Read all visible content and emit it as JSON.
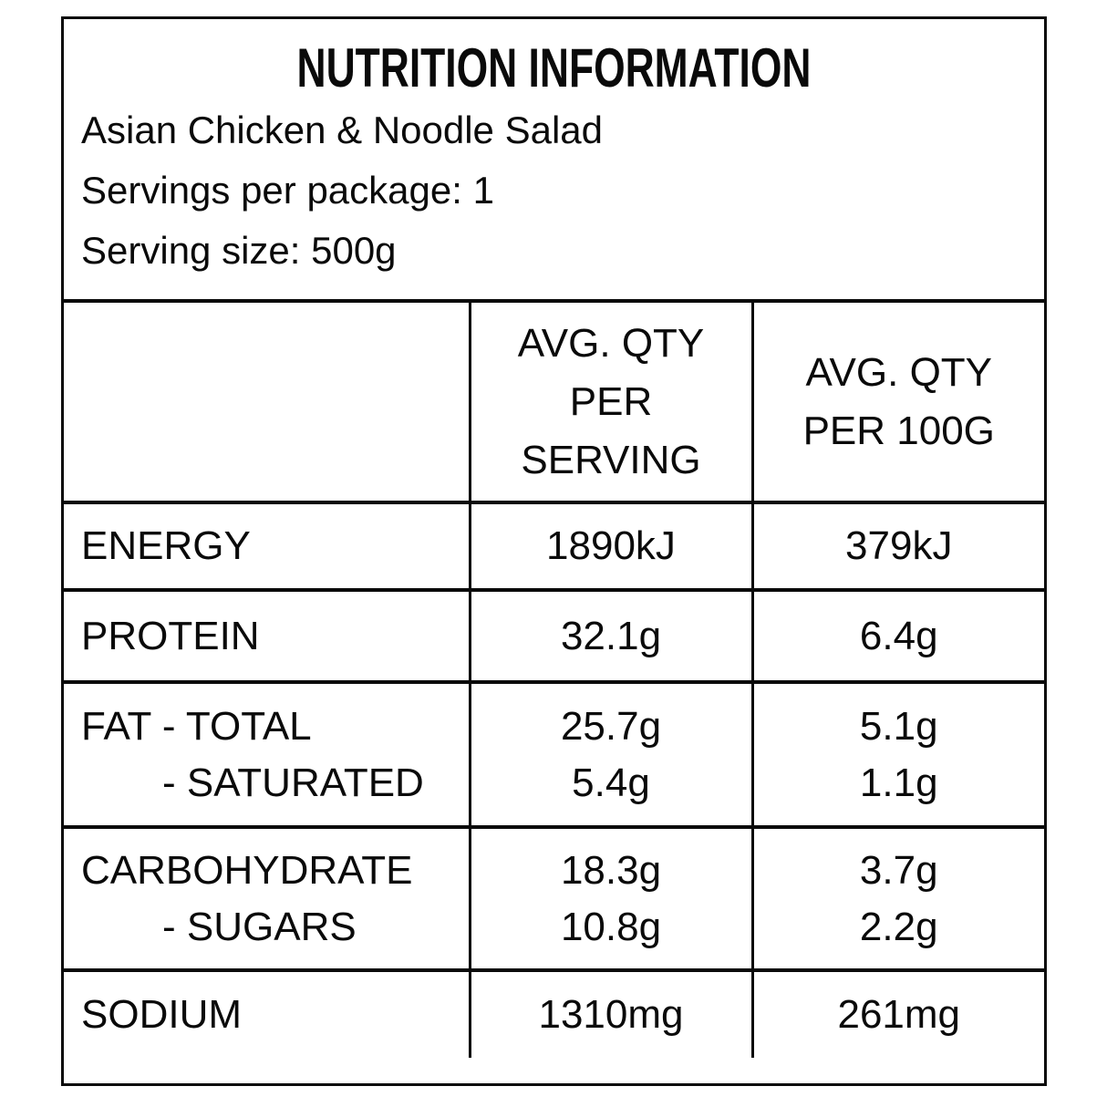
{
  "header": {
    "title": "NUTRITION INFORMATION",
    "product_name": "Asian Chicken & Noodle Salad",
    "servings_line": "Servings per package: 1",
    "serving_size_line": "Serving size: 500g"
  },
  "table": {
    "columns": {
      "nutrient": "",
      "per_serving": "AVG. QTY\nPER\nSERVING",
      "per_100g": "AVG. QTY\nPER 100G"
    },
    "rows": [
      {
        "label": "ENERGY",
        "per_serving": "1890kJ",
        "per_100g": "379kJ"
      },
      {
        "label": "PROTEIN",
        "per_serving": "32.1g",
        "per_100g": "6.4g"
      },
      {
        "lines": [
          {
            "label": "FAT - TOTAL",
            "per_serving": "25.7g",
            "per_100g": "5.1g"
          },
          {
            "label": "- SATURATED",
            "per_serving": "5.4g",
            "per_100g": "1.1g"
          }
        ]
      },
      {
        "lines": [
          {
            "label": "CARBOHYDRATE",
            "per_serving": "18.3g",
            "per_100g": "3.7g"
          },
          {
            "label": "- SUGARS",
            "per_serving": "10.8g",
            "per_100g": "2.2g"
          }
        ]
      },
      {
        "label": "SODIUM",
        "per_serving": "1310mg",
        "per_100g": "261mg"
      }
    ]
  }
}
